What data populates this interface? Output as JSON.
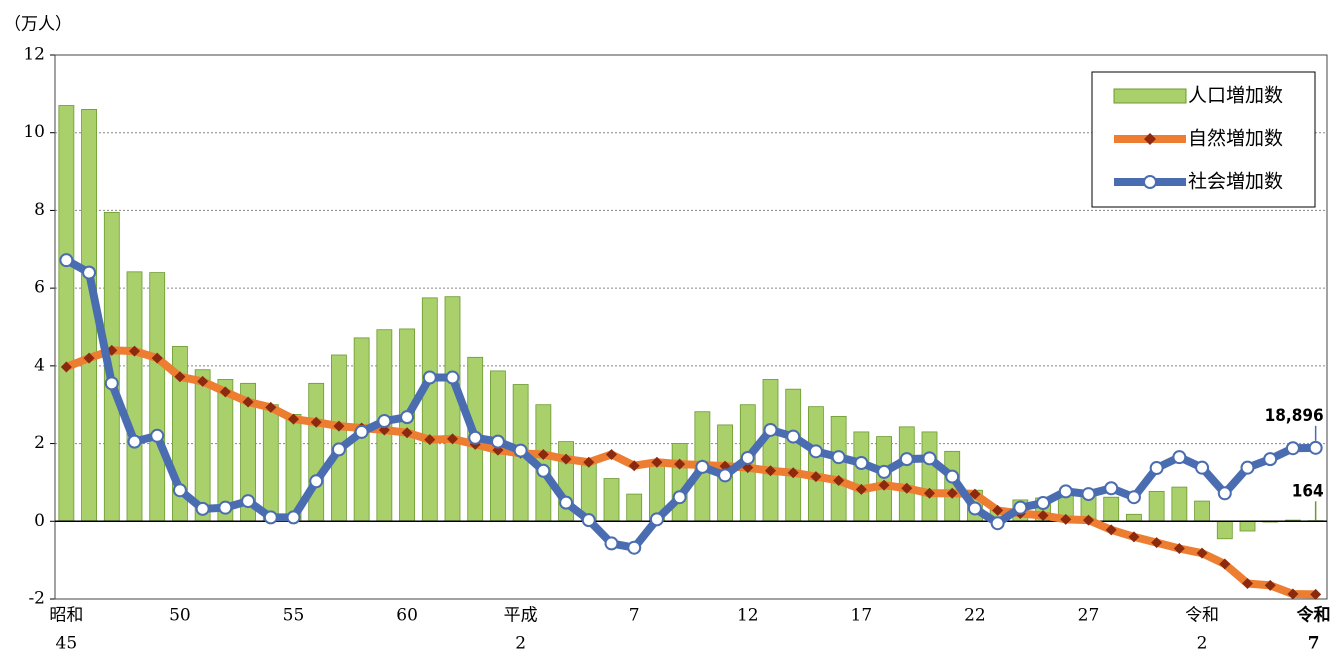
{
  "chart_data": {
    "type": "bar_line",
    "y_axis_label": "（万人）",
    "categories": [
      "昭和",
      null,
      null,
      null,
      null,
      "50",
      null,
      null,
      null,
      null,
      "55",
      null,
      null,
      null,
      null,
      "60",
      null,
      null,
      null,
      null,
      "平成",
      null,
      null,
      null,
      null,
      "7",
      null,
      null,
      null,
      null,
      "12",
      null,
      null,
      null,
      null,
      "17",
      null,
      null,
      null,
      null,
      "22",
      null,
      null,
      null,
      null,
      "27",
      null,
      null,
      null,
      null,
      "令和",
      null,
      null,
      null,
      null,
      "令和"
    ],
    "categories_line2": [
      "45",
      null,
      null,
      null,
      null,
      null,
      null,
      null,
      null,
      null,
      null,
      null,
      null,
      null,
      null,
      null,
      null,
      null,
      null,
      null,
      "2",
      null,
      null,
      null,
      null,
      null,
      null,
      null,
      null,
      null,
      null,
      null,
      null,
      null,
      null,
      null,
      null,
      null,
      null,
      null,
      null,
      null,
      null,
      null,
      null,
      null,
      null,
      null,
      null,
      null,
      "2",
      null,
      null,
      null,
      null,
      "7"
    ],
    "ylim": [
      -2,
      12
    ],
    "yticks": [
      -2,
      0,
      2,
      4,
      6,
      8,
      10,
      12
    ],
    "grid": true,
    "legend": "top-right",
    "series": [
      {
        "name": "人口増加数",
        "kind": "bar",
        "color": "#a9d06b",
        "values": [
          10.7,
          10.6,
          7.95,
          6.42,
          6.4,
          4.5,
          3.9,
          3.65,
          3.55,
          3.0,
          2.75,
          3.55,
          4.28,
          4.72,
          4.93,
          4.95,
          5.75,
          5.78,
          4.22,
          3.87,
          3.52,
          3.0,
          2.05,
          1.55,
          1.1,
          0.7,
          1.5,
          2.0,
          2.82,
          2.48,
          3.0,
          3.65,
          3.4,
          2.95,
          2.7,
          2.3,
          2.18,
          2.43,
          2.3,
          1.8,
          0.8,
          0.3,
          0.55,
          0.6,
          0.75,
          0.7,
          0.62,
          0.18,
          0.77,
          0.88,
          0.52,
          -0.45,
          -0.25,
          -0.02,
          0.03,
          0.0164
        ],
        "value_labels": [
          null,
          null,
          null,
          null,
          null,
          null,
          null,
          null,
          null,
          null,
          null,
          null,
          null,
          null,
          null,
          null,
          null,
          null,
          null,
          null,
          null,
          null,
          null,
          null,
          null,
          null,
          null,
          null,
          null,
          null,
          null,
          null,
          null,
          null,
          null,
          null,
          null,
          null,
          null,
          null,
          null,
          null,
          null,
          null,
          null,
          null,
          null,
          null,
          null,
          null,
          null,
          null,
          null,
          null,
          null,
          "164"
        ]
      },
      {
        "name": "自然増加数",
        "kind": "line",
        "color": "#ed7d31",
        "marker": "diamond",
        "marker_color": "#8b2a0e",
        "values": [
          3.97,
          4.2,
          4.4,
          4.38,
          4.2,
          3.72,
          3.6,
          3.33,
          3.07,
          2.93,
          2.63,
          2.55,
          2.45,
          2.4,
          2.35,
          2.28,
          2.1,
          2.12,
          1.98,
          1.83,
          1.75,
          1.72,
          1.6,
          1.52,
          1.72,
          1.43,
          1.52,
          1.47,
          1.45,
          1.42,
          1.38,
          1.3,
          1.25,
          1.15,
          1.05,
          0.82,
          0.93,
          0.85,
          0.72,
          0.72,
          0.7,
          0.28,
          0.2,
          0.15,
          0.05,
          0.03,
          -0.22,
          -0.4,
          -0.55,
          -0.7,
          -0.82,
          -1.1,
          -1.6,
          -1.65,
          -1.87,
          -1.88
        ]
      },
      {
        "name": "社会増加数",
        "kind": "line",
        "color": "#4a6cb0",
        "marker": "circle",
        "marker_color": "#ffffff",
        "values": [
          6.72,
          6.4,
          3.55,
          2.05,
          2.2,
          0.8,
          0.32,
          0.35,
          0.52,
          0.1,
          0.1,
          1.03,
          1.85,
          2.3,
          2.58,
          2.68,
          3.7,
          3.7,
          2.15,
          2.05,
          1.82,
          1.3,
          0.48,
          0.03,
          -0.57,
          -0.68,
          0.05,
          0.62,
          1.4,
          1.18,
          1.63,
          2.35,
          2.18,
          1.8,
          1.65,
          1.5,
          1.27,
          1.6,
          1.62,
          1.15,
          0.33,
          -0.05,
          0.35,
          0.47,
          0.77,
          0.7,
          0.85,
          0.62,
          1.37,
          1.65,
          1.38,
          0.72,
          1.38,
          1.6,
          1.88,
          1.8896
        ],
        "value_labels": [
          null,
          null,
          null,
          null,
          null,
          null,
          null,
          null,
          null,
          null,
          null,
          null,
          null,
          null,
          null,
          null,
          null,
          null,
          null,
          null,
          null,
          null,
          null,
          null,
          null,
          null,
          null,
          null,
          null,
          null,
          null,
          null,
          null,
          null,
          null,
          null,
          null,
          null,
          null,
          null,
          null,
          null,
          null,
          null,
          null,
          null,
          null,
          null,
          null,
          null,
          null,
          null,
          null,
          null,
          null,
          "18,896"
        ]
      }
    ]
  }
}
